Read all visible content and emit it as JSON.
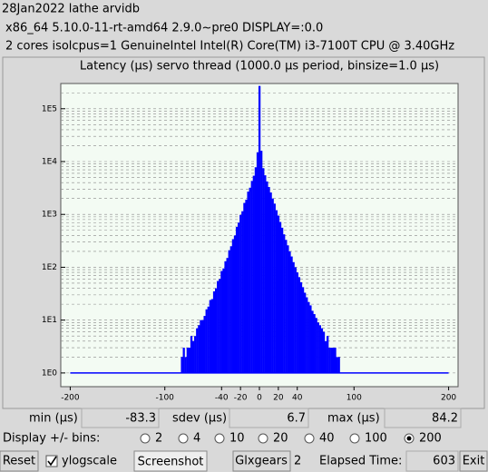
{
  "header": {
    "title": "28Jan2022 lathe arvidb",
    "system": "x86_64  5.10.0-11-rt-amd64  2.9.0~pre0  DISPLAY=:0.0",
    "cpu": "2 cores  isolcpus=1   GenuineIntel  Intel(R) Core(TM) i3-7100T CPU @ 3.40GHz"
  },
  "chart_data": {
    "type": "histogram",
    "title": "Latency (µs) servo thread (1000.0 µs period, binsize=1.0 µs)",
    "bins": [
      -85,
      -83,
      -81,
      -79,
      -77,
      -75,
      -73,
      -71,
      -69,
      -67,
      -65,
      -63,
      -61,
      -59,
      -57,
      -55,
      -53,
      -51,
      -49,
      -47,
      -45,
      -43,
      -41,
      -39,
      -37,
      -35,
      -33,
      -31,
      -29,
      -27,
      -25,
      -23,
      -21,
      -19,
      -17,
      -15,
      -13,
      -11,
      -9,
      -7,
      -5,
      -3,
      -1,
      1,
      3,
      5,
      7,
      9,
      11,
      13,
      15,
      17,
      19,
      21,
      23,
      25,
      27,
      29,
      31,
      33,
      35,
      37,
      39,
      41,
      43,
      45,
      47,
      49,
      51,
      53,
      55,
      57,
      59,
      61,
      63,
      65,
      67,
      69,
      71,
      73,
      75,
      77,
      79,
      81,
      83,
      85
    ],
    "values": [
      1,
      2,
      3,
      2,
      3,
      3,
      5,
      4,
      5,
      7,
      8,
      10,
      10,
      12,
      16,
      18,
      24,
      25,
      35,
      40,
      55,
      60,
      85,
      95,
      130,
      150,
      210,
      250,
      340,
      400,
      580,
      700,
      980,
      1150,
      1650,
      1900,
      2700,
      3200,
      4300,
      5400,
      7800,
      15000,
      270000,
      16000,
      7500,
      5500,
      4200,
      3300,
      2600,
      2000,
      1600,
      1200,
      950,
      720,
      560,
      420,
      330,
      260,
      200,
      160,
      125,
      100,
      80,
      65,
      52,
      42,
      33,
      27,
      22,
      19,
      15,
      13,
      11,
      9,
      8,
      7,
      6,
      4,
      5,
      3,
      3,
      3,
      3,
      2,
      2
    ],
    "color": "#0000ff",
    "log_y": true,
    "grid": true,
    "xlim": [
      -210,
      210
    ],
    "xticks": [
      -200,
      -100,
      -40,
      -20,
      0,
      20,
      40,
      100,
      200
    ],
    "ylim": [
      0.55,
      300000
    ],
    "yticks": [
      {
        "value": 1,
        "label": "1E0"
      },
      {
        "value": 10,
        "label": "1E1"
      },
      {
        "value": 100,
        "label": "1E2"
      },
      {
        "value": 1000,
        "label": "1E3"
      },
      {
        "value": 10000,
        "label": "1E4"
      },
      {
        "value": 100000,
        "label": "1E5"
      }
    ],
    "y_minor_ticks": [
      2,
      3,
      4,
      5,
      6,
      7,
      8,
      9,
      20,
      30,
      40,
      50,
      60,
      70,
      80,
      90,
      200,
      300,
      400,
      500,
      600,
      700,
      800,
      900,
      2000,
      3000,
      4000,
      5000,
      6000,
      7000,
      8000,
      9000,
      20000,
      30000,
      40000,
      50000,
      60000,
      70000,
      80000,
      90000,
      200000
    ]
  },
  "stats": {
    "min_label": "min (µs)",
    "min": -83.3,
    "sdev_label": "sdev (µs)",
    "sdev": 6.7,
    "max_label": "max (µs)",
    "max": 84.2
  },
  "controls": {
    "bins_label": "Display +/- bins:",
    "bin_options": [
      2,
      4,
      10,
      20,
      40,
      100,
      200
    ],
    "selected_bins": 200,
    "reset": "Reset",
    "ylogscale": "ylogscale",
    "screenshot": "Screenshot",
    "glxgears": "Glxgears",
    "glxgears_count": 2,
    "elapsed_label": "Elapsed Time:",
    "elapsed": 603,
    "exit": "Exit"
  }
}
